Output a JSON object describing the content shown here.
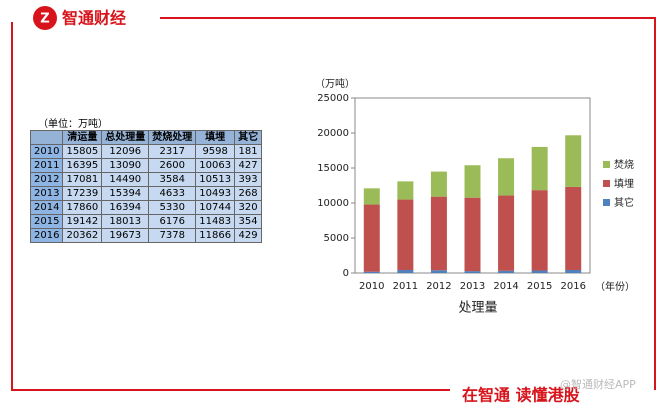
{
  "brand": {
    "name": "智通财经",
    "logo": "Z"
  },
  "table": {
    "caption": "（单位：万吨）",
    "header": [
      "",
      "清运量",
      "总处理量",
      "焚烧处理",
      "填埋",
      "其它"
    ],
    "rows": [
      [
        "2010",
        "15805",
        "12096",
        "2317",
        "9598",
        "181"
      ],
      [
        "2011",
        "16395",
        "13090",
        "2600",
        "10063",
        "427"
      ],
      [
        "2012",
        "17081",
        "14490",
        "3584",
        "10513",
        "393"
      ],
      [
        "2013",
        "17239",
        "15394",
        "4633",
        "10493",
        "268"
      ],
      [
        "2014",
        "17860",
        "16394",
        "5330",
        "10744",
        "320"
      ],
      [
        "2015",
        "19142",
        "18013",
        "6176",
        "11483",
        "354"
      ],
      [
        "2016",
        "20362",
        "19673",
        "7378",
        "11866",
        "429"
      ]
    ]
  },
  "chart_data": {
    "type": "stacked_bar",
    "y_label": "（万吨）",
    "x_unit": "（年份）",
    "x_label": "处理量",
    "categories": [
      "2010",
      "2011",
      "2012",
      "2013",
      "2014",
      "2015",
      "2016"
    ],
    "series": [
      {
        "name": "其它",
        "color": "#4f81bd",
        "values": [
          181,
          427,
          393,
          268,
          320,
          354,
          429
        ]
      },
      {
        "name": "填埋",
        "color": "#c0504d",
        "values": [
          9598,
          10063,
          10513,
          10493,
          10744,
          11483,
          11866
        ]
      },
      {
        "name": "焚烧",
        "color": "#9bbb59",
        "values": [
          2317,
          2600,
          3584,
          4633,
          5330,
          6176,
          7378
        ]
      }
    ],
    "ylim": [
      0,
      25000
    ],
    "yticks": [
      0,
      5000,
      10000,
      15000,
      20000,
      25000
    ],
    "grid": false,
    "legend": "right"
  },
  "footer": {
    "slogan": "在智通  读懂港股",
    "watermark": "@智通财经APP"
  }
}
